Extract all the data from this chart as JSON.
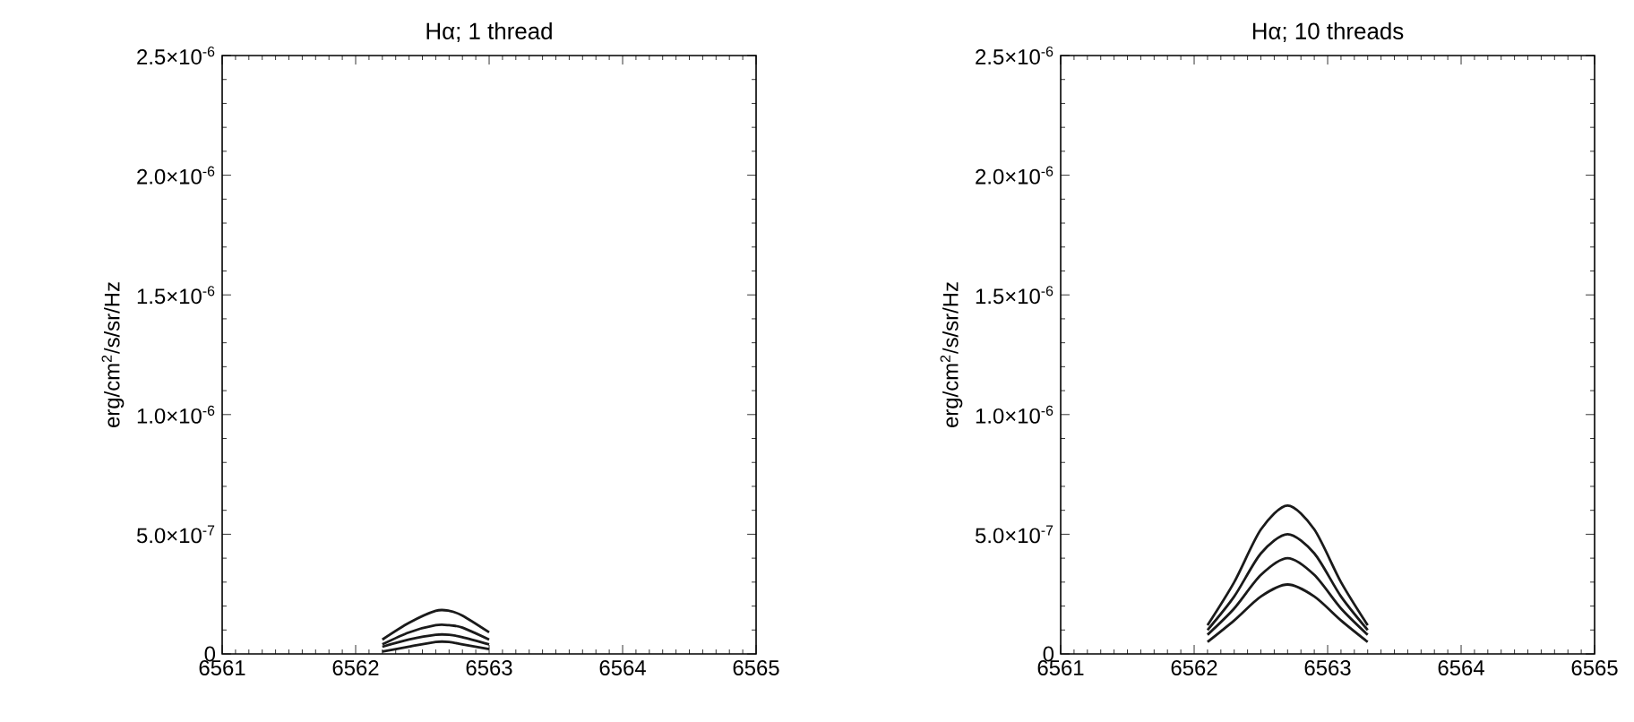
{
  "chart_data": [
    {
      "type": "line",
      "title": "Hα; 1 thread",
      "ylabel": "erg/cm$^{2}$/s/sr/Hz",
      "xlim": [
        6561,
        6565
      ],
      "ylim": [
        0,
        2.5e-06
      ],
      "xticks": [
        6561,
        6562,
        6563,
        6564,
        6565
      ],
      "yticks": [
        0,
        {
          "value": 5e-07,
          "label": "5.0×10$^{-7}$"
        },
        {
          "value": 1e-06,
          "label": "1.0×10$^{-6}$"
        },
        {
          "value": 1.5e-06,
          "label": "1.5×10$^{-6}$"
        },
        {
          "value": 2e-06,
          "label": "2.0×10$^{-6}$"
        },
        {
          "value": 2.5e-06,
          "label": "2.5×10$^{-6}$"
        }
      ],
      "x": [
        6562.2,
        6562.4,
        6562.6,
        6562.7,
        6562.8,
        6563.0
      ],
      "series": [
        {
          "color": "#1a1a1a",
          "values": [
            6e-08,
            1.3e-07,
            1.8e-07,
            1.8e-07,
            1.6e-07,
            9e-08
          ]
        },
        {
          "color": "#1a1a1a",
          "values": [
            4e-08,
            9e-08,
            1.2e-07,
            1.2e-07,
            1.1e-07,
            6e-08
          ]
        },
        {
          "color": "#1a1a1a",
          "values": [
            3e-08,
            6e-08,
            8e-08,
            8e-08,
            7e-08,
            4e-08
          ]
        },
        {
          "color": "#1a1a1a",
          "values": [
            1e-08,
            3e-08,
            5e-08,
            5e-08,
            4e-08,
            2e-08
          ]
        }
      ]
    },
    {
      "type": "line",
      "title": "Hα; 10 threads",
      "ylabel": "erg/cm$^{2}$/s/sr/Hz",
      "xlim": [
        6561,
        6565
      ],
      "ylim": [
        0,
        2.5e-06
      ],
      "xticks": [
        6561,
        6562,
        6563,
        6564,
        6565
      ],
      "yticks": [
        0,
        {
          "value": 5e-07,
          "label": "5.0×10$^{-7}$"
        },
        {
          "value": 1e-06,
          "label": "1.0×10$^{-6}$"
        },
        {
          "value": 1.5e-06,
          "label": "1.5×10$^{-6}$"
        },
        {
          "value": 2e-06,
          "label": "2.0×10$^{-6}$"
        },
        {
          "value": 2.5e-06,
          "label": "2.5×10$^{-6}$"
        }
      ],
      "x": [
        6562.1,
        6562.3,
        6562.5,
        6562.7,
        6562.9,
        6563.1,
        6563.3
      ],
      "series": [
        {
          "color": "#1a1a1a",
          "values": [
            1.2e-07,
            3e-07,
            5.2e-07,
            6.2e-07,
            5.2e-07,
            3e-07,
            1.2e-07
          ]
        },
        {
          "color": "#1a1a1a",
          "values": [
            1e-07,
            2.4e-07,
            4.2e-07,
            5e-07,
            4.2e-07,
            2.4e-07,
            1e-07
          ]
        },
        {
          "color": "#1a1a1a",
          "values": [
            8e-08,
            1.9e-07,
            3.3e-07,
            4e-07,
            3.3e-07,
            1.9e-07,
            8e-08
          ]
        },
        {
          "color": "#1a1a1a",
          "values": [
            5e-08,
            1.4e-07,
            2.4e-07,
            2.9e-07,
            2.4e-07,
            1.4e-07,
            5e-08
          ]
        }
      ]
    }
  ]
}
